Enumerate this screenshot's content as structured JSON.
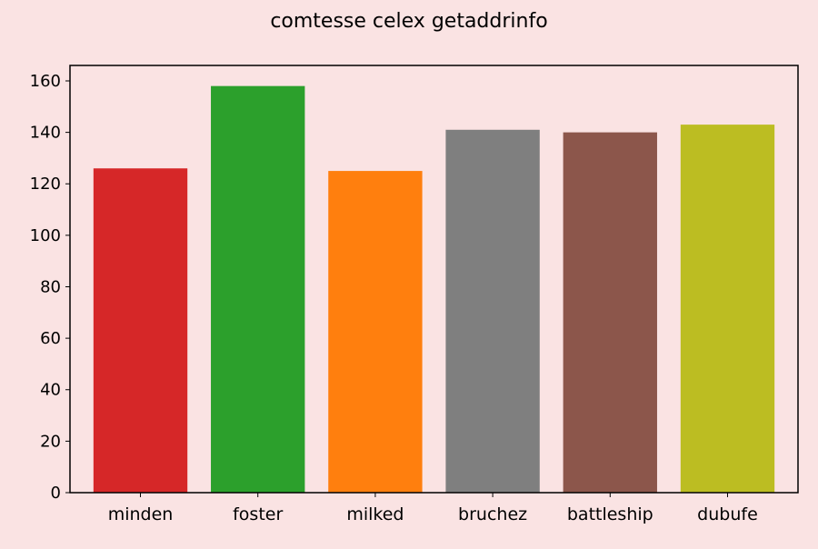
{
  "chart_data": {
    "type": "bar",
    "title": "comtesse celex getaddrinfo",
    "xlabel": "",
    "ylabel": "",
    "categories": [
      "minden",
      "foster",
      "milked",
      "bruchez",
      "battleship",
      "dubufe"
    ],
    "values": [
      126,
      158,
      125,
      141,
      140,
      143
    ],
    "colors": [
      "#d62728",
      "#2ca02c",
      "#ff7f0e",
      "#7f7f7f",
      "#8c564b",
      "#bcbd22"
    ],
    "ylim": [
      0,
      166
    ],
    "yticks": [
      0,
      20,
      40,
      60,
      80,
      100,
      120,
      140,
      160
    ],
    "grid": false,
    "legend": "none"
  },
  "style": {
    "background": "#fae3e3",
    "axes_color": "#000000"
  }
}
